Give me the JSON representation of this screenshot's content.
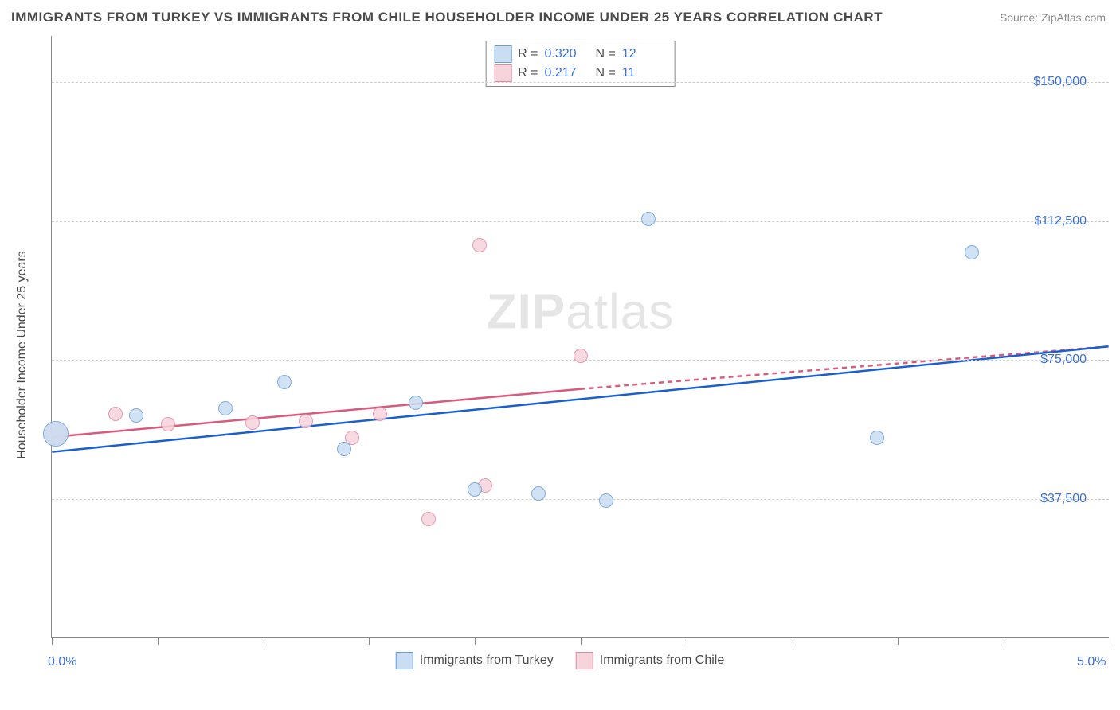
{
  "title": "IMMIGRANTS FROM TURKEY VS IMMIGRANTS FROM CHILE HOUSEHOLDER INCOME UNDER 25 YEARS CORRELATION CHART",
  "source": "Source: ZipAtlas.com",
  "ylabel": "Householder Income Under 25 years",
  "watermark_prefix": "ZIP",
  "watermark_suffix": "atlas",
  "chart": {
    "type": "scatter",
    "xlim": [
      0.0,
      5.0
    ],
    "ylim": [
      0,
      162500
    ],
    "x_unit": "%",
    "y_unit": "$",
    "x_tick_labels": [
      {
        "x": 0.0,
        "label": "0.0%"
      },
      {
        "x": 5.0,
        "label": "5.0%"
      }
    ],
    "x_minor_ticks": [
      0.0,
      0.5,
      1.0,
      1.5,
      2.0,
      2.5,
      3.0,
      3.5,
      4.0,
      4.5,
      5.0
    ],
    "y_grid": [
      37500,
      75000,
      112500,
      150000
    ],
    "y_tick_labels": [
      "$37,500",
      "$75,000",
      "$112,500",
      "$150,000"
    ],
    "background_color": "#ffffff",
    "grid_color": "#cccccc",
    "axis_color": "#888888",
    "trend_line_width": 2.5,
    "marker_border_width": 1.5,
    "marker_default_radius": 9,
    "label_fontsize": 16,
    "title_fontsize": 17,
    "text_color": "#4a4a4a",
    "value_color": "#3b6fd6"
  },
  "series": {
    "turkey": {
      "label": "Immigrants from Turkey",
      "fill": "#c9ddf3",
      "stroke": "#6a9ed8",
      "line_color": "#1a5fd0",
      "R": "0.320",
      "N": "12",
      "trend": {
        "x1": 0.0,
        "y1": 50000,
        "x2": 5.0,
        "y2": 78500
      },
      "points": [
        {
          "x": 0.02,
          "y": 55000,
          "r": 16
        },
        {
          "x": 0.4,
          "y": 60000,
          "r": 9
        },
        {
          "x": 0.82,
          "y": 62000,
          "r": 9
        },
        {
          "x": 1.1,
          "y": 69000,
          "r": 9
        },
        {
          "x": 1.38,
          "y": 51000,
          "r": 9
        },
        {
          "x": 1.72,
          "y": 63500,
          "r": 9
        },
        {
          "x": 2.0,
          "y": 40000,
          "r": 9
        },
        {
          "x": 2.3,
          "y": 39000,
          "r": 9
        },
        {
          "x": 2.62,
          "y": 37000,
          "r": 9
        },
        {
          "x": 2.82,
          "y": 113000,
          "r": 9
        },
        {
          "x": 3.9,
          "y": 54000,
          "r": 9
        },
        {
          "x": 4.35,
          "y": 104000,
          "r": 9
        }
      ]
    },
    "chile": {
      "label": "Immigrants from Chile",
      "fill": "#f6d4dc",
      "stroke": "#e08aa0",
      "line_color": "#d85a7d",
      "R": "0.217",
      "N": "11",
      "trend_solid": {
        "x1": 0.0,
        "y1": 54000,
        "x2": 2.5,
        "y2": 67000
      },
      "trend_dash": {
        "x1": 2.5,
        "y1": 67000,
        "x2": 5.0,
        "y2": 78500
      },
      "points": [
        {
          "x": 0.02,
          "y": 55000,
          "r": 14
        },
        {
          "x": 0.3,
          "y": 60500,
          "r": 9
        },
        {
          "x": 0.55,
          "y": 57500,
          "r": 9
        },
        {
          "x": 0.95,
          "y": 58000,
          "r": 9
        },
        {
          "x": 1.2,
          "y": 58500,
          "r": 9
        },
        {
          "x": 1.42,
          "y": 54000,
          "r": 9
        },
        {
          "x": 1.78,
          "y": 32000,
          "r": 9
        },
        {
          "x": 2.02,
          "y": 106000,
          "r": 9
        },
        {
          "x": 2.05,
          "y": 41000,
          "r": 9
        },
        {
          "x": 2.5,
          "y": 76000,
          "r": 9
        },
        {
          "x": 1.55,
          "y": 60500,
          "r": 9
        }
      ]
    }
  },
  "stats_header": {
    "R_label": "R =",
    "N_label": "N ="
  }
}
